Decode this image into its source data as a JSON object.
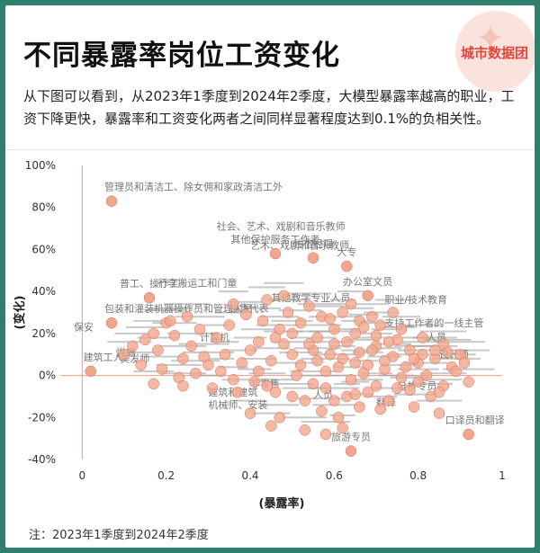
{
  "header": {
    "title": "不同暴露率岗位工资变化",
    "brand": "城市数据团",
    "description": "从下图可以看到，从2023年1季度到2024年2季度，大模型暴露率越高的职业，工资下降更快，暴露率和工资变化两者之间同样显著程度达到0.1%的负相关性。"
  },
  "footer": {
    "note": "注：2023年1季度到2024年2季度"
  },
  "colors": {
    "background": "#2f7f6c",
    "point": "#f0a78e",
    "point_stroke": "#e06b4f",
    "ref_line": "#e89c88",
    "label": "#777777"
  },
  "chart_data": {
    "type": "scatter",
    "xlabel": "(暴露率)",
    "ylabel": "(变化)",
    "xlim": [
      -0.05,
      1.0
    ],
    "ylim": [
      -0.4,
      1.0
    ],
    "x_ticks": [
      0,
      0.2,
      0.4,
      0.6,
      0.8,
      1
    ],
    "x_tick_labels": [
      "0",
      "0.2",
      "0.4",
      "0.6",
      "0.8",
      "1"
    ],
    "y_ticks": [
      -0.4,
      -0.2,
      0,
      0.2,
      0.4,
      0.6,
      0.8,
      1.0
    ],
    "y_tick_labels": [
      "-40%",
      "-20%",
      "0%",
      "20%",
      "40%",
      "60%",
      "80%",
      "100%"
    ],
    "reference_lines": {
      "x": 0,
      "y": 0
    },
    "grid": false,
    "labeled_points": [
      {
        "x": 0.07,
        "y": 0.83,
        "label": "管理员和清洁工、除女佣和家政清洁工外"
      },
      {
        "x": 0.46,
        "y": 0.58,
        "label": "其他保护服务工作者"
      },
      {
        "x": 0.55,
        "y": 0.56,
        "label": "住宿经理"
      },
      {
        "x": 0.63,
        "y": 0.52,
        "label": "大专"
      },
      {
        "x": 0.16,
        "y": 0.37,
        "label": "普工、操作工"
      },
      {
        "x": 0.68,
        "y": 0.38,
        "label": "办公室文员"
      },
      {
        "x": 0.07,
        "y": 0.25,
        "label": "包装和灌装机器操作员和管理人员"
      },
      {
        "x": 0.02,
        "y": 0.02,
        "label": "建筑工人"
      },
      {
        "x": 0.92,
        "y": -0.28,
        "label": "口译员和翻译"
      },
      {
        "x": 0.64,
        "y": -0.36,
        "label": "旅游专员"
      }
    ],
    "other_labels": [
      {
        "x": 0.32,
        "y": 0.66,
        "label": "社会、艺术、戏剧和音乐教师"
      },
      {
        "x": 0.4,
        "y": 0.57,
        "label": "艺术、戏剧和音乐教师"
      },
      {
        "x": 0.18,
        "y": 0.39,
        "label": "行李搬运工和门童"
      },
      {
        "x": 0.45,
        "y": 0.32,
        "label": "其他教学专业人员"
      },
      {
        "x": 0.72,
        "y": 0.31,
        "label": "职业/技术教育"
      },
      {
        "x": 0.35,
        "y": 0.27,
        "label": "销售代表"
      },
      {
        "x": 0.72,
        "y": 0.2,
        "label": "支持工作者的一线主管"
      },
      {
        "x": -0.02,
        "y": 0.18,
        "label": "保安"
      },
      {
        "x": 0.28,
        "y": 0.13,
        "label": "计算机"
      },
      {
        "x": 0.82,
        "y": 0.13,
        "label": "人员"
      },
      {
        "x": 0.85,
        "y": 0.05,
        "label": "设计师"
      },
      {
        "x": 0.08,
        "y": 0.06,
        "label": "烘焙"
      },
      {
        "x": 0.09,
        "y": 0.03,
        "label": "美发师"
      },
      {
        "x": 0.4,
        "y": -0.09,
        "label": "非零售"
      },
      {
        "x": 0.75,
        "y": -0.1,
        "label": "分析专员"
      },
      {
        "x": 0.55,
        "y": -0.14,
        "label": "人员"
      },
      {
        "x": 0.3,
        "y": -0.13,
        "label": "建筑和建筑"
      },
      {
        "x": 0.3,
        "y": -0.19,
        "label": "机械师、安装"
      },
      {
        "x": 0.7,
        "y": -0.18,
        "label": "翻译"
      }
    ],
    "cluster_points": [
      [
        0.5,
        0.1
      ],
      [
        0.52,
        0.05
      ],
      [
        0.55,
        0.12
      ],
      [
        0.58,
        0.02
      ],
      [
        0.6,
        0.15
      ],
      [
        0.62,
        0.08
      ],
      [
        0.64,
        -0.02
      ],
      [
        0.66,
        0.11
      ],
      [
        0.68,
        0.05
      ],
      [
        0.7,
        0.14
      ],
      [
        0.72,
        0.03
      ],
      [
        0.74,
        0.09
      ],
      [
        0.76,
        -0.01
      ],
      [
        0.78,
        0.12
      ],
      [
        0.8,
        0.06
      ],
      [
        0.82,
        0.0
      ],
      [
        0.84,
        0.08
      ],
      [
        0.86,
        -0.05
      ],
      [
        0.88,
        0.04
      ],
      [
        0.56,
        0.18
      ],
      [
        0.6,
        0.22
      ],
      [
        0.65,
        0.2
      ],
      [
        0.7,
        0.19
      ],
      [
        0.75,
        0.17
      ],
      [
        0.58,
        -0.06
      ],
      [
        0.63,
        -0.1
      ],
      [
        0.68,
        -0.08
      ],
      [
        0.73,
        -0.12
      ],
      [
        0.78,
        -0.07
      ],
      [
        0.83,
        -0.1
      ],
      [
        0.45,
        0.07
      ],
      [
        0.48,
        0.15
      ],
      [
        0.42,
        0.02
      ],
      [
        0.4,
        0.12
      ],
      [
        0.38,
        0.06
      ],
      [
        0.36,
        -0.02
      ],
      [
        0.44,
        -0.05
      ],
      [
        0.47,
        0.22
      ],
      [
        0.52,
        0.25
      ],
      [
        0.57,
        0.28
      ],
      [
        0.62,
        0.3
      ],
      [
        0.66,
        0.26
      ],
      [
        0.71,
        0.24
      ],
      [
        0.76,
        0.22
      ],
      [
        0.81,
        0.18
      ],
      [
        0.86,
        0.15
      ],
      [
        0.9,
        0.1
      ],
      [
        0.92,
        -0.03
      ],
      [
        0.53,
        -0.12
      ],
      [
        0.57,
        -0.17
      ],
      [
        0.61,
        -0.2
      ],
      [
        0.66,
        -0.15
      ],
      [
        0.71,
        -0.16
      ],
      [
        0.79,
        -0.15
      ],
      [
        0.85,
        -0.18
      ],
      [
        0.34,
        0.1
      ],
      [
        0.32,
        0.18
      ],
      [
        0.3,
        0.05
      ],
      [
        0.28,
        0.22
      ],
      [
        0.26,
        0.14
      ],
      [
        0.24,
        0.08
      ],
      [
        0.22,
        0.19
      ],
      [
        0.2,
        0.25
      ],
      [
        0.18,
        0.12
      ],
      [
        0.15,
        0.17
      ],
      [
        0.12,
        0.14
      ],
      [
        0.1,
        0.1
      ],
      [
        0.19,
        0.03
      ],
      [
        0.23,
        -0.01
      ],
      [
        0.27,
        0.01
      ],
      [
        0.31,
        -0.06
      ],
      [
        0.35,
        0.24
      ],
      [
        0.39,
        0.29
      ],
      [
        0.43,
        0.26
      ],
      [
        0.49,
        0.3
      ],
      [
        0.54,
        0.33
      ],
      [
        0.59,
        0.27
      ],
      [
        0.64,
        0.34
      ],
      [
        0.69,
        0.28
      ],
      [
        0.74,
        0.3
      ],
      [
        0.51,
        0.0
      ],
      [
        0.56,
        0.07
      ],
      [
        0.61,
        0.04
      ],
      [
        0.67,
        0.01
      ],
      [
        0.72,
        0.07
      ],
      [
        0.77,
        0.04
      ],
      [
        0.81,
        0.1
      ],
      [
        0.87,
        0.11
      ],
      [
        0.89,
        0.02
      ],
      [
        0.91,
        0.06
      ],
      [
        0.46,
        0.18
      ],
      [
        0.5,
        0.2
      ],
      [
        0.54,
        0.15
      ],
      [
        0.59,
        0.1
      ],
      [
        0.63,
        0.16
      ],
      [
        0.69,
        0.12
      ],
      [
        0.73,
        0.16
      ],
      [
        0.79,
        0.08
      ],
      [
        0.84,
        0.12
      ],
      [
        0.65,
        0.06
      ],
      [
        0.41,
        -0.03
      ],
      [
        0.46,
        -0.08
      ],
      [
        0.5,
        -0.1
      ],
      [
        0.55,
        -0.04
      ],
      [
        0.6,
        -0.12
      ],
      [
        0.65,
        -0.09
      ],
      [
        0.7,
        -0.05
      ],
      [
        0.75,
        -0.06
      ],
      [
        0.8,
        -0.03
      ],
      [
        0.85,
        -0.08
      ],
      [
        0.47,
        -0.2
      ],
      [
        0.53,
        -0.26
      ],
      [
        0.45,
        -0.24
      ],
      [
        0.58,
        -0.28
      ],
      [
        0.62,
        -0.25
      ],
      [
        0.4,
        -0.18
      ],
      [
        0.37,
        -0.08
      ],
      [
        0.33,
        0.02
      ],
      [
        0.29,
        0.09
      ],
      [
        0.25,
        0.28
      ],
      [
        0.21,
        0.26
      ],
      [
        0.17,
        0.2
      ],
      [
        0.14,
        0.05
      ],
      [
        0.17,
        -0.04
      ],
      [
        0.24,
        -0.05
      ],
      [
        0.36,
        0.34
      ],
      [
        0.44,
        0.36
      ],
      [
        0.48,
        0.38
      ],
      [
        0.42,
        0.16
      ],
      [
        0.67,
        0.23
      ]
    ]
  }
}
